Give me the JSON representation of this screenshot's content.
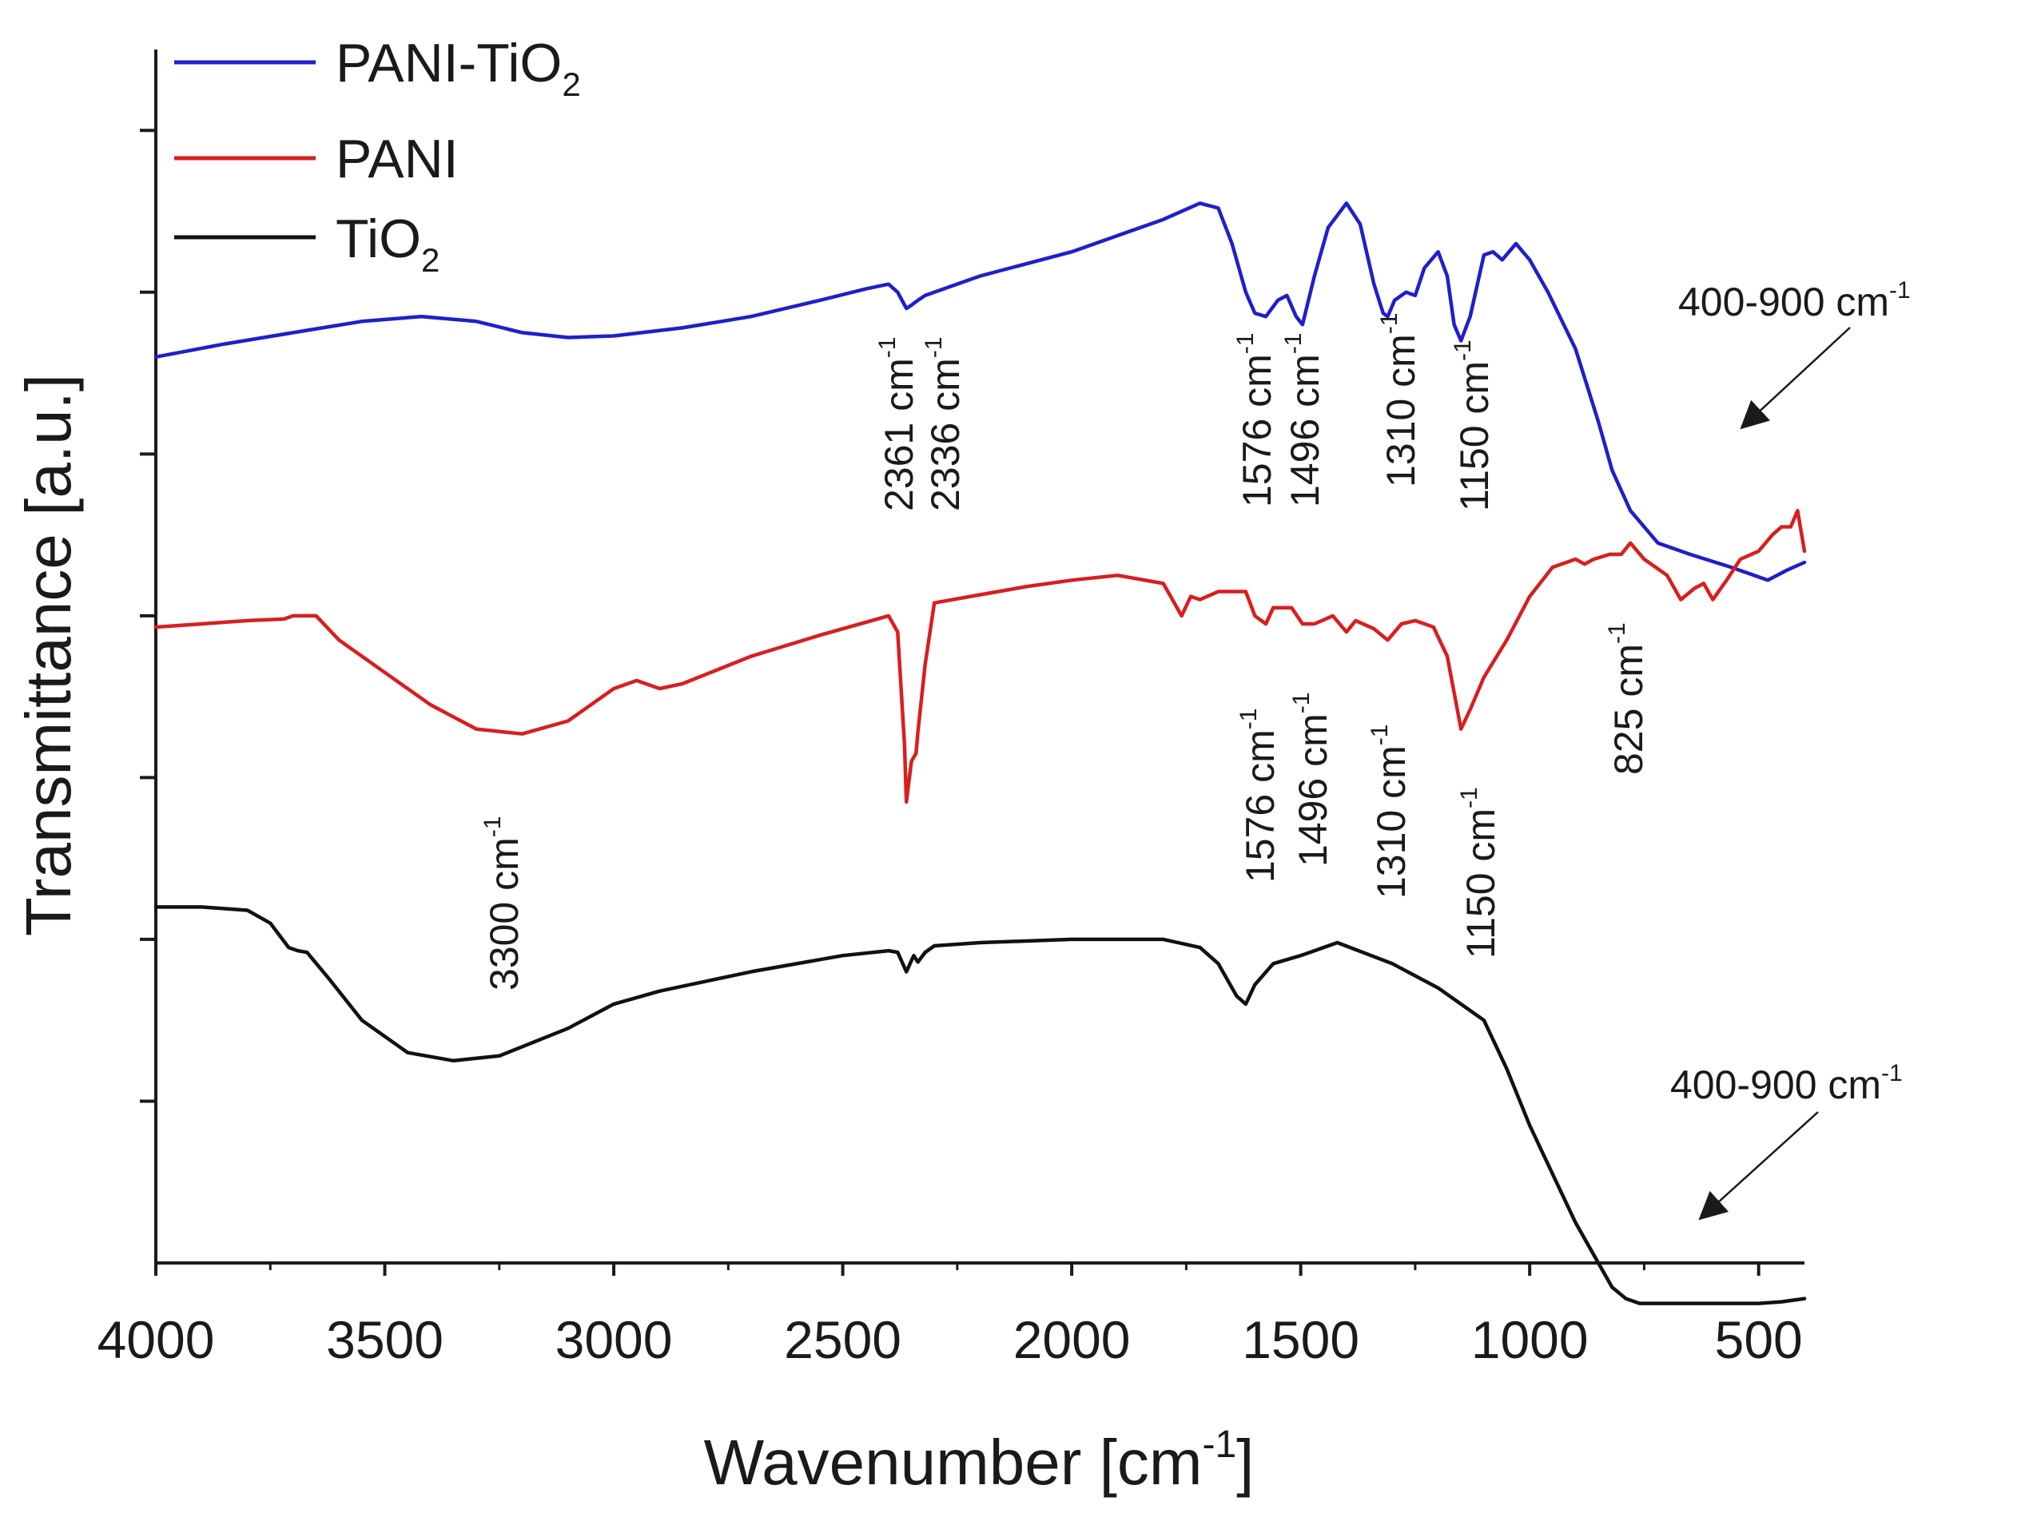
{
  "chart_data": {
    "type": "line",
    "title": "",
    "xlabel": "Wavenumber [cm-1]",
    "xlabel_parts": {
      "main": "Wavenumber [cm",
      "sup": "-1",
      "close": "]"
    },
    "ylabel": "Transmittance [a.u.]",
    "xlim": [
      4000,
      400
    ],
    "x_reversed": true,
    "ylim": [
      0,
      7.5
    ],
    "y_tick_labels_shown": false,
    "x_ticks": [
      4000,
      3500,
      3000,
      2500,
      2000,
      1500,
      1000,
      500
    ],
    "x_tick_labels": [
      "4000",
      "3500",
      "3000",
      "2500",
      "2000",
      "1500",
      "1000",
      "500"
    ],
    "x_minor_ticks": [
      3750,
      3250,
      2750,
      2250,
      1750,
      1250,
      750
    ],
    "y_ticks": [
      1,
      2,
      3,
      4,
      5,
      6,
      7
    ],
    "grid": false,
    "legend_position": "top-left",
    "series": [
      {
        "name": "PANI-TiO2",
        "label_main": "PANI-TiO",
        "label_sub": "2",
        "color": "#1f1fcc",
        "x": [
          4000,
          3850,
          3700,
          3550,
          3420,
          3300,
          3200,
          3100,
          3000,
          2850,
          2700,
          2550,
          2450,
          2400,
          2380,
          2361,
          2350,
          2336,
          2320,
          2300,
          2200,
          2000,
          1800,
          1720,
          1680,
          1650,
          1620,
          1600,
          1576,
          1550,
          1530,
          1510,
          1496,
          1470,
          1440,
          1400,
          1370,
          1340,
          1320,
          1310,
          1295,
          1270,
          1250,
          1230,
          1200,
          1180,
          1165,
          1150,
          1130,
          1100,
          1080,
          1060,
          1030,
          1000,
          960,
          900,
          850,
          820,
          780,
          720,
          650,
          560,
          480,
          440,
          400
        ],
        "y": [
          5.6,
          5.68,
          5.75,
          5.82,
          5.85,
          5.82,
          5.75,
          5.72,
          5.73,
          5.78,
          5.85,
          5.95,
          6.02,
          6.05,
          6.0,
          5.9,
          5.92,
          5.95,
          5.98,
          6.0,
          6.1,
          6.25,
          6.45,
          6.55,
          6.52,
          6.3,
          6.0,
          5.87,
          5.85,
          5.95,
          5.98,
          5.85,
          5.8,
          6.1,
          6.4,
          6.55,
          6.42,
          6.05,
          5.87,
          5.85,
          5.95,
          6.0,
          5.98,
          6.15,
          6.25,
          6.1,
          5.8,
          5.7,
          5.85,
          6.23,
          6.25,
          6.2,
          6.3,
          6.2,
          6.0,
          5.65,
          5.2,
          4.9,
          4.65,
          4.45,
          4.38,
          4.3,
          4.22,
          4.28,
          4.33
        ]
      },
      {
        "name": "PANI",
        "label_main": "PANI",
        "label_sub": "",
        "color": "#d91e1e",
        "x": [
          4000,
          3900,
          3800,
          3720,
          3700,
          3650,
          3600,
          3500,
          3400,
          3300,
          3200,
          3100,
          3000,
          2950,
          2900,
          2850,
          2700,
          2550,
          2400,
          2380,
          2365,
          2361,
          2350,
          2340,
          2336,
          2320,
          2300,
          2200,
          2100,
          2000,
          1900,
          1800,
          1760,
          1740,
          1720,
          1680,
          1620,
          1600,
          1576,
          1560,
          1520,
          1496,
          1470,
          1430,
          1400,
          1380,
          1340,
          1310,
          1280,
          1250,
          1210,
          1180,
          1160,
          1150,
          1130,
          1100,
          1050,
          1000,
          950,
          900,
          880,
          860,
          825,
          800,
          780,
          750,
          700,
          670,
          640,
          620,
          600,
          570,
          540,
          500,
          470,
          450,
          430,
          415,
          400
        ],
        "y": [
          3.93,
          3.95,
          3.97,
          3.98,
          4.0,
          4.0,
          3.85,
          3.65,
          3.45,
          3.3,
          3.27,
          3.35,
          3.55,
          3.6,
          3.55,
          3.58,
          3.75,
          3.88,
          4.0,
          3.9,
          3.2,
          2.85,
          3.1,
          3.15,
          3.28,
          3.7,
          4.08,
          4.13,
          4.18,
          4.22,
          4.25,
          4.2,
          4.0,
          4.12,
          4.1,
          4.15,
          4.15,
          4.0,
          3.95,
          4.05,
          4.05,
          3.95,
          3.95,
          4.0,
          3.9,
          3.97,
          3.92,
          3.85,
          3.95,
          3.97,
          3.93,
          3.75,
          3.45,
          3.3,
          3.42,
          3.62,
          3.85,
          4.12,
          4.3,
          4.35,
          4.32,
          4.35,
          4.38,
          4.38,
          4.45,
          4.35,
          4.25,
          4.1,
          4.17,
          4.2,
          4.1,
          4.22,
          4.35,
          4.4,
          4.5,
          4.55,
          4.55,
          4.65,
          4.4
        ]
      },
      {
        "name": "TiO2",
        "label_main": "TiO",
        "label_sub": "2",
        "color": "#111111",
        "x": [
          4000,
          3900,
          3800,
          3750,
          3710,
          3690,
          3670,
          3620,
          3550,
          3450,
          3350,
          3250,
          3100,
          3000,
          2900,
          2700,
          2500,
          2400,
          2380,
          2361,
          2345,
          2336,
          2320,
          2300,
          2200,
          2000,
          1800,
          1720,
          1680,
          1640,
          1620,
          1600,
          1560,
          1500,
          1420,
          1300,
          1200,
          1100,
          1050,
          1000,
          950,
          900,
          850,
          820,
          790,
          760,
          700,
          600,
          500,
          450,
          400
        ],
        "y": [
          2.2,
          2.2,
          2.18,
          2.1,
          1.95,
          1.93,
          1.92,
          1.75,
          1.5,
          1.3,
          1.25,
          1.28,
          1.45,
          1.6,
          1.68,
          1.8,
          1.9,
          1.93,
          1.92,
          1.8,
          1.9,
          1.86,
          1.92,
          1.96,
          1.98,
          2.0,
          2.0,
          1.95,
          1.85,
          1.65,
          1.6,
          1.72,
          1.85,
          1.9,
          1.98,
          1.85,
          1.7,
          1.5,
          1.2,
          0.85,
          0.55,
          0.25,
          0.0,
          -0.15,
          -0.22,
          -0.25,
          -0.25,
          -0.25,
          -0.25,
          -0.24,
          -0.22
        ]
      }
    ],
    "annotations": {
      "pani_tio2": [
        {
          "main": "2361 cm",
          "sup": "-1"
        },
        {
          "main": "2336 cm",
          "sup": "-1"
        },
        {
          "main": "1576 cm",
          "sup": "-1"
        },
        {
          "main": "1496 cm",
          "sup": "-1"
        },
        {
          "main": "1310 cm",
          "sup": "-1"
        },
        {
          "main": "1150 cm",
          "sup": "-1"
        },
        {
          "main": "400-900 cm",
          "sup": "-1"
        }
      ],
      "pani": [
        {
          "main": "3300 cm",
          "sup": "-1"
        },
        {
          "main": "1576 cm",
          "sup": "-1"
        },
        {
          "main": "1496 cm",
          "sup": "-1"
        },
        {
          "main": "1310 cm",
          "sup": "-1"
        },
        {
          "main": "1150 cm",
          "sup": "-1"
        },
        {
          "main": "825 cm",
          "sup": "-1"
        }
      ],
      "tio2": [
        {
          "main": "400-900 cm",
          "sup": "-1"
        }
      ]
    }
  }
}
